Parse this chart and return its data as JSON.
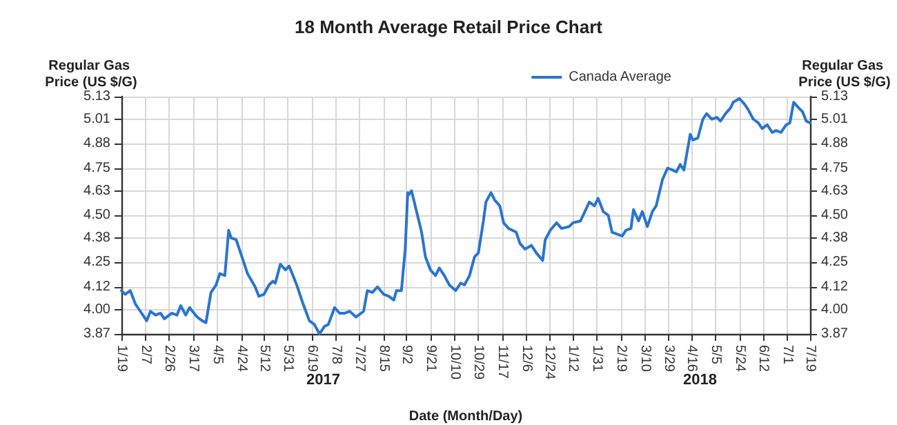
{
  "chart_data": {
    "type": "line",
    "title": "18 Month Average Retail Price Chart",
    "xlabel": "Date (Month/Day)",
    "ylabel": "Regular Gas Price (US $/G)",
    "y2label": "Regular Gas Price (US $/G)",
    "annotations": [
      "2017",
      "2018"
    ],
    "x": [
      "2017-01-19",
      "2017-01-22",
      "2017-01-26",
      "2017-01-30",
      "2017-02-02",
      "2017-02-08",
      "2017-02-11",
      "2017-02-15",
      "2017-02-19",
      "2017-02-22",
      "2017-02-28",
      "2017-03-04",
      "2017-03-07",
      "2017-03-11",
      "2017-03-14",
      "2017-03-20",
      "2017-03-24",
      "2017-03-27",
      "2017-03-31",
      "2017-04-04",
      "2017-04-07",
      "2017-04-11",
      "2017-04-14",
      "2017-04-16",
      "2017-04-20",
      "2017-04-24",
      "2017-04-29",
      "2017-05-05",
      "2017-05-08",
      "2017-05-12",
      "2017-05-16",
      "2017-05-19",
      "2017-05-21",
      "2017-05-25",
      "2017-05-29",
      "2017-06-01",
      "2017-06-07",
      "2017-06-12",
      "2017-06-17",
      "2017-06-21",
      "2017-06-25",
      "2017-06-29",
      "2017-07-02",
      "2017-07-07",
      "2017-07-11",
      "2017-07-15",
      "2017-07-19",
      "2017-07-24",
      "2017-07-30",
      "2017-08-02",
      "2017-08-06",
      "2017-08-10",
      "2017-08-15",
      "2017-08-19",
      "2017-08-23",
      "2017-08-25",
      "2017-08-29",
      "2017-09-01",
      "2017-09-03",
      "2017-09-04",
      "2017-09-06",
      "2017-09-10",
      "2017-09-14",
      "2017-09-17",
      "2017-09-21",
      "2017-09-25",
      "2017-09-28",
      "2017-10-02",
      "2017-10-06",
      "2017-10-11",
      "2017-10-15",
      "2017-10-18",
      "2017-10-22",
      "2017-10-26",
      "2017-10-29",
      "2017-11-02",
      "2017-11-04",
      "2017-11-08",
      "2017-11-11",
      "2017-11-15",
      "2017-11-18",
      "2017-11-22",
      "2017-11-28",
      "2017-12-01",
      "2017-12-05",
      "2017-12-10",
      "2017-12-14",
      "2017-12-19",
      "2017-12-21",
      "2017-12-25",
      "2017-12-30",
      "2018-01-03",
      "2018-01-09",
      "2018-01-12",
      "2018-01-18",
      "2018-01-25",
      "2018-01-29",
      "2018-02-01",
      "2018-02-05",
      "2018-02-09",
      "2018-02-12",
      "2018-02-20",
      "2018-02-23",
      "2018-02-27",
      "2018-03-01",
      "2018-03-05",
      "2018-03-08",
      "2018-03-12",
      "2018-03-16",
      "2018-03-19",
      "2018-03-24",
      "2018-03-28",
      "2018-04-01",
      "2018-04-04",
      "2018-04-07",
      "2018-04-10",
      "2018-04-15",
      "2018-04-17",
      "2018-04-21",
      "2018-04-25",
      "2018-04-28",
      "2018-05-02",
      "2018-05-06",
      "2018-05-09",
      "2018-05-13",
      "2018-05-17",
      "2018-05-19",
      "2018-05-24",
      "2018-05-28",
      "2018-05-31",
      "2018-06-04",
      "2018-06-08",
      "2018-06-11",
      "2018-06-15",
      "2018-06-19",
      "2018-06-22",
      "2018-06-26",
      "2018-06-30",
      "2018-07-03",
      "2018-07-06",
      "2018-07-10",
      "2018-07-13",
      "2018-07-16",
      "2018-07-19"
    ],
    "series": [
      {
        "name": "Canada Average",
        "color": "#2a74d0",
        "values": [
          4.1,
          4.08,
          4.1,
          4.03,
          4.0,
          3.94,
          3.99,
          3.97,
          3.98,
          3.95,
          3.98,
          3.97,
          4.02,
          3.97,
          4.01,
          3.96,
          3.94,
          3.93,
          4.09,
          4.13,
          4.19,
          4.18,
          4.42,
          4.38,
          4.37,
          4.29,
          4.19,
          4.12,
          4.07,
          4.08,
          4.13,
          4.15,
          4.14,
          4.24,
          4.21,
          4.23,
          4.13,
          4.03,
          3.94,
          3.92,
          3.87,
          3.91,
          3.92,
          4.01,
          3.98,
          3.98,
          3.99,
          3.96,
          3.99,
          4.1,
          4.09,
          4.12,
          4.08,
          4.07,
          4.05,
          4.1,
          4.1,
          4.32,
          4.62,
          4.61,
          4.63,
          4.52,
          4.41,
          4.28,
          4.21,
          4.18,
          4.22,
          4.18,
          4.13,
          4.1,
          4.14,
          4.13,
          4.18,
          4.28,
          4.3,
          4.47,
          4.57,
          4.62,
          4.58,
          4.55,
          4.46,
          4.43,
          4.41,
          4.35,
          4.32,
          4.34,
          4.3,
          4.26,
          4.37,
          4.42,
          4.46,
          4.43,
          4.44,
          4.46,
          4.47,
          4.57,
          4.55,
          4.59,
          4.52,
          4.5,
          4.41,
          4.39,
          4.42,
          4.43,
          4.53,
          4.47,
          4.52,
          4.44,
          4.52,
          4.55,
          4.69,
          4.75,
          4.74,
          4.73,
          4.77,
          4.74,
          4.93,
          4.9,
          4.91,
          5.01,
          5.04,
          5.01,
          5.02,
          5.0,
          5.04,
          5.07,
          5.1,
          5.12,
          5.09,
          5.06,
          5.01,
          4.99,
          4.96,
          4.98,
          4.94,
          4.95,
          4.94,
          4.98,
          4.99,
          5.1,
          5.07,
          5.05,
          5.0,
          4.99
        ]
      }
    ],
    "xlim": [
      "2017-01-19",
      "2018-07-19"
    ],
    "xticks": [
      {
        "value": "2017-01-19",
        "label": "1/19"
      },
      {
        "value": "2017-02-07",
        "label": "2/7"
      },
      {
        "value": "2017-02-26",
        "label": "2/26"
      },
      {
        "value": "2017-03-17",
        "label": "3/17"
      },
      {
        "value": "2017-04-05",
        "label": "4/5"
      },
      {
        "value": "2017-04-24",
        "label": "4/24"
      },
      {
        "value": "2017-05-12",
        "label": "5/12"
      },
      {
        "value": "2017-05-31",
        "label": "5/31"
      },
      {
        "value": "2017-06-19",
        "label": "6/19"
      },
      {
        "value": "2017-07-08",
        "label": "7/8"
      },
      {
        "value": "2017-07-27",
        "label": "7/27"
      },
      {
        "value": "2017-08-15",
        "label": "8/15"
      },
      {
        "value": "2017-09-02",
        "label": "9/2"
      },
      {
        "value": "2017-09-21",
        "label": "9/21"
      },
      {
        "value": "2017-10-10",
        "label": "10/10"
      },
      {
        "value": "2017-10-29",
        "label": "10/29"
      },
      {
        "value": "2017-11-17",
        "label": "11/17"
      },
      {
        "value": "2017-12-06",
        "label": "12/6"
      },
      {
        "value": "2017-12-24",
        "label": "12/24"
      },
      {
        "value": "2018-01-12",
        "label": "1/12"
      },
      {
        "value": "2018-01-31",
        "label": "1/31"
      },
      {
        "value": "2018-02-19",
        "label": "2/19"
      },
      {
        "value": "2018-03-10",
        "label": "3/10"
      },
      {
        "value": "2018-03-29",
        "label": "3/29"
      },
      {
        "value": "2018-04-16",
        "label": "4/16"
      },
      {
        "value": "2018-05-05",
        "label": "5/5"
      },
      {
        "value": "2018-05-24",
        "label": "5/24"
      },
      {
        "value": "2018-06-12",
        "label": "6/12"
      },
      {
        "value": "2018-07-01",
        "label": "7/1"
      },
      {
        "value": "2018-07-19",
        "label": "7/19"
      }
    ],
    "ylim": [
      3.87,
      5.13
    ],
    "yticks": [
      {
        "value": 3.87,
        "label": "3.87"
      },
      {
        "value": 4.0,
        "label": "4.00"
      },
      {
        "value": 4.12,
        "label": "4.12"
      },
      {
        "value": 4.25,
        "label": "4.25"
      },
      {
        "value": 4.38,
        "label": "4.38"
      },
      {
        "value": 4.5,
        "label": "4.50"
      },
      {
        "value": 4.63,
        "label": "4.63"
      },
      {
        "value": 4.75,
        "label": "4.75"
      },
      {
        "value": 4.88,
        "label": "4.88"
      },
      {
        "value": 5.01,
        "label": "5.01"
      },
      {
        "value": 5.13,
        "label": "5.13"
      }
    ],
    "y2lim": [
      3.87,
      5.13
    ],
    "y2ticks": [
      {
        "value": 3.87,
        "label": "3.87"
      },
      {
        "value": 4.0,
        "label": "4.00"
      },
      {
        "value": 4.12,
        "label": "4.12"
      },
      {
        "value": 4.25,
        "label": "4.25"
      },
      {
        "value": 4.38,
        "label": "4.38"
      },
      {
        "value": 4.5,
        "label": "4.50"
      },
      {
        "value": 4.63,
        "label": "4.63"
      },
      {
        "value": 4.75,
        "label": "4.75"
      },
      {
        "value": 4.88,
        "label": "4.88"
      },
      {
        "value": 5.01,
        "label": "5.01"
      },
      {
        "value": 5.13,
        "label": "5.13"
      }
    ],
    "grid": true,
    "legend": "top right",
    "marker": "none",
    "line_style": "solid"
  }
}
